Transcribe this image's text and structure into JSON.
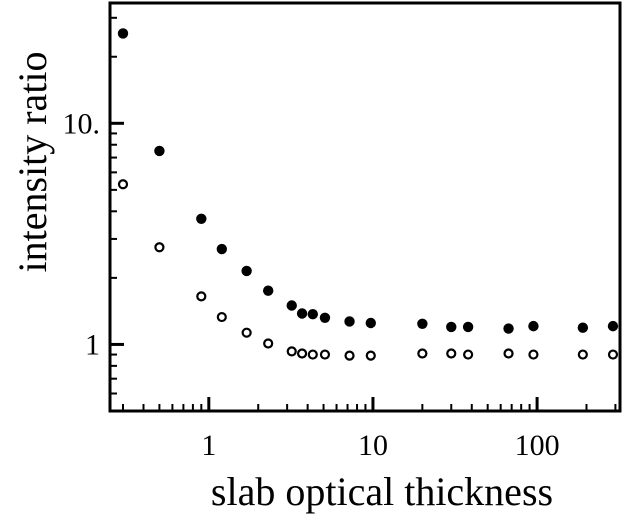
{
  "chart_data": {
    "type": "scatter",
    "xlabel": "slab optical thickness",
    "ylabel": "intensity ratio",
    "xscale": "log",
    "yscale": "log",
    "xlim": [
      0.25,
      320
    ],
    "ylim": [
      0.5,
      35
    ],
    "xticks": [
      {
        "value": 1,
        "label": "1"
      },
      {
        "value": 10,
        "label": "10"
      },
      {
        "value": 100,
        "label": "100"
      }
    ],
    "yticks": [
      {
        "value": 1,
        "label": "1"
      },
      {
        "value": 10,
        "label": "10."
      }
    ],
    "grid": false,
    "series": [
      {
        "marker": "filled-circle",
        "color": "#000000",
        "points": [
          [
            0.3,
            25.5
          ],
          [
            0.5,
            7.5
          ],
          [
            0.9,
            3.7
          ],
          [
            1.2,
            2.7
          ],
          [
            1.7,
            2.15
          ],
          [
            2.3,
            1.75
          ],
          [
            3.2,
            1.5
          ],
          [
            3.7,
            1.38
          ],
          [
            4.3,
            1.37
          ],
          [
            5.1,
            1.32
          ],
          [
            7.2,
            1.27
          ],
          [
            9.7,
            1.25
          ],
          [
            20,
            1.24
          ],
          [
            30,
            1.2
          ],
          [
            38,
            1.2
          ],
          [
            67,
            1.18
          ],
          [
            95,
            1.21
          ],
          [
            190,
            1.19
          ],
          [
            290,
            1.21
          ]
        ]
      },
      {
        "marker": "open-circle",
        "color": "#000000",
        "points": [
          [
            0.3,
            5.3
          ],
          [
            0.5,
            2.75
          ],
          [
            0.9,
            1.65
          ],
          [
            1.2,
            1.33
          ],
          [
            1.7,
            1.13
          ],
          [
            2.3,
            1.01
          ],
          [
            3.2,
            0.93
          ],
          [
            3.7,
            0.91
          ],
          [
            4.3,
            0.9
          ],
          [
            5.1,
            0.9
          ],
          [
            7.2,
            0.89
          ],
          [
            9.7,
            0.89
          ],
          [
            20,
            0.91
          ],
          [
            30,
            0.91
          ],
          [
            38,
            0.9
          ],
          [
            67,
            0.91
          ],
          [
            95,
            0.9
          ],
          [
            190,
            0.9
          ],
          [
            290,
            0.9
          ]
        ]
      }
    ]
  }
}
